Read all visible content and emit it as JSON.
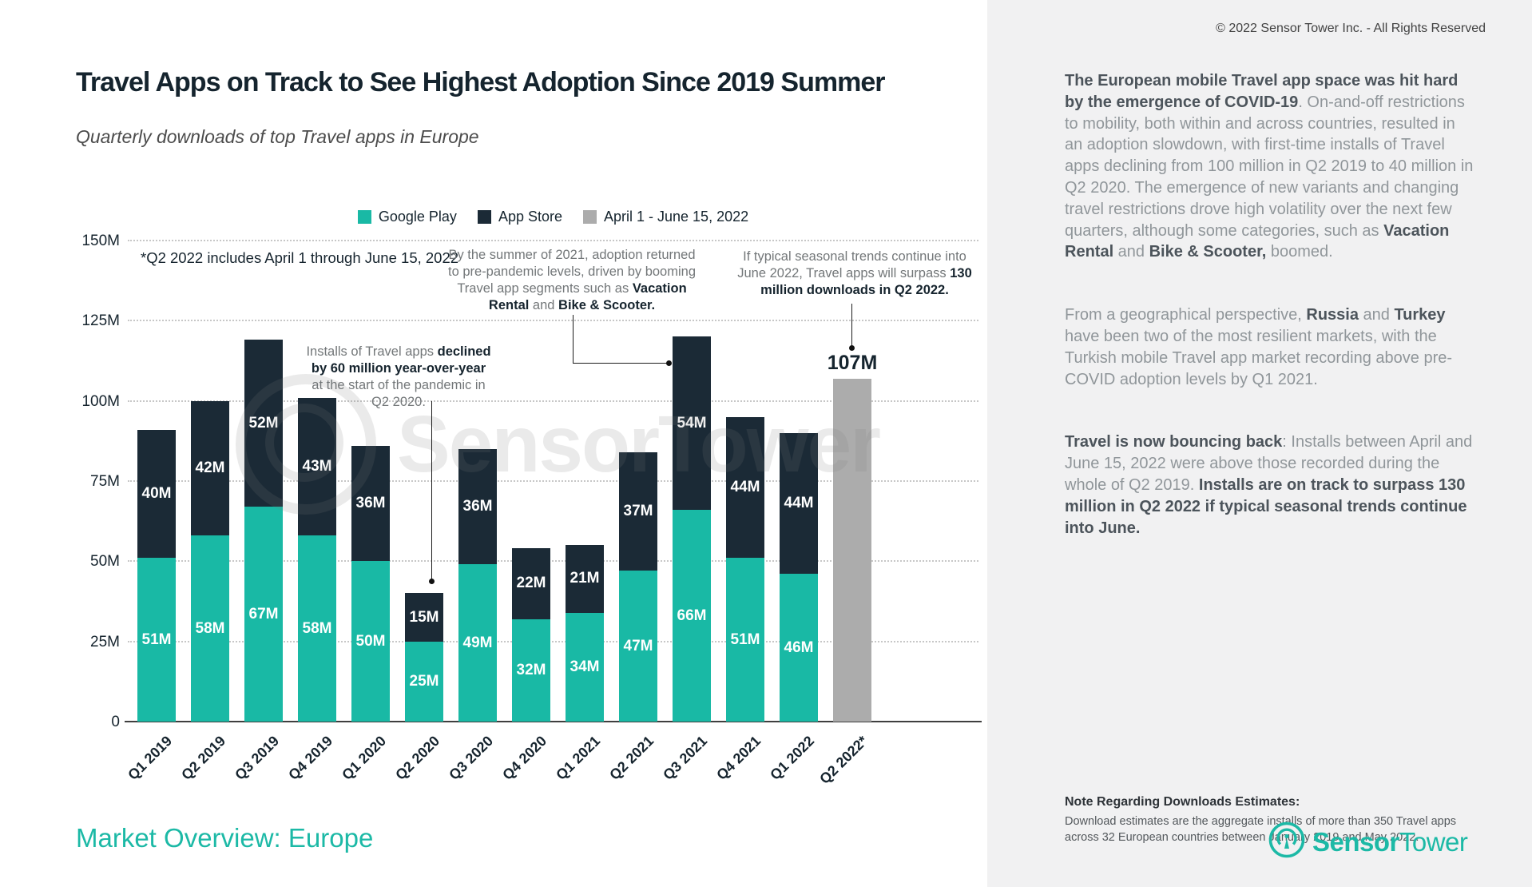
{
  "left_panel": {
    "title": "Travel Apps on Track to See Highest Adoption Since 2019 Summer",
    "subtitle": "Quarterly downloads of top Travel apps in Europe",
    "footer": "Market Overview: Europe",
    "watermark": "SensorTower"
  },
  "chart_data": {
    "type": "bar",
    "stacked": true,
    "title": "Quarterly downloads of top Travel apps in Europe",
    "unit": "M",
    "ylim": [
      0,
      150
    ],
    "yticks": [
      "150M",
      "125M",
      "100M",
      "75M",
      "50M",
      "25M",
      "0"
    ],
    "grid": "horizontal-dotted",
    "legend_position": "top-center",
    "categories": [
      "Q1 2019",
      "Q2 2019",
      "Q3 2019",
      "Q4 2019",
      "Q1 2020",
      "Q2 2020",
      "Q3 2020",
      "Q4 2020",
      "Q1 2021",
      "Q2 2021",
      "Q3 2021",
      "Q4 2021",
      "Q1 2022",
      "Q2 2022*"
    ],
    "series": [
      {
        "name": "Google Play",
        "color": "#19b9a5",
        "values": [
          51,
          58,
          67,
          58,
          50,
          25,
          49,
          32,
          34,
          47,
          66,
          51,
          46,
          null
        ]
      },
      {
        "name": "App Store",
        "color": "#1b2a36",
        "values": [
          40,
          42,
          52,
          43,
          36,
          15,
          36,
          22,
          21,
          37,
          54,
          44,
          44,
          null
        ]
      },
      {
        "name": "April 1 - June 15, 2022",
        "color": "#acacac",
        "values": [
          null,
          null,
          null,
          null,
          null,
          null,
          null,
          null,
          null,
          null,
          null,
          null,
          null,
          107
        ]
      }
    ],
    "estimate_total_label": "107M"
  },
  "annotations": {
    "footnote": {
      "runs": [
        {
          "t": "*Q2 2022 includes April 1 through June 15, 2022"
        }
      ]
    },
    "summer_2021": {
      "runs": [
        {
          "t": "By the summer of 2021, adoption returned to pre-pandemic levels, driven by booming Travel app segments such as "
        },
        {
          "b": 1,
          "t": "Vacation Rental"
        },
        {
          "t": " and "
        },
        {
          "b": 1,
          "t": "Bike & Scooter."
        }
      ]
    },
    "forecast": {
      "runs": [
        {
          "t": "If typical seasonal trends continue into June 2022, Travel apps will surpass "
        },
        {
          "b": 1,
          "t": "130 million downloads in Q2 2022."
        }
      ]
    },
    "pandemic_drop": {
      "runs": [
        {
          "t": "Installs of Travel apps "
        },
        {
          "b": 1,
          "t": "declined by 60 million year-over-year"
        },
        {
          "t": " at the start of the pandemic in Q2 2020."
        }
      ]
    }
  },
  "right_panel": {
    "copyright": "© 2022 Sensor Tower Inc. - All Rights Reserved",
    "p1": {
      "runs": [
        {
          "b": 1,
          "t": "The European mobile Travel app space was hit hard by the emergence of COVID-19"
        },
        {
          "t": ". On-and-off restrictions to mobility, both within and across countries, resulted in an adoption slowdown, with first-time installs of Travel apps declining from 100 million in Q2 2019 to 40 million in Q2 2020. The emergence of new variants and changing travel restrictions drove high volatility over the next few quarters, although some categories, such as "
        },
        {
          "b": 1,
          "t": "Vacation Rental"
        },
        {
          "t": " and "
        },
        {
          "b": 1,
          "t": "Bike & Scooter,"
        },
        {
          "t": " boomed."
        }
      ]
    },
    "p2": {
      "runs": [
        {
          "t": "From a geographical perspective, "
        },
        {
          "b": 1,
          "t": "Russia"
        },
        {
          "t": " and "
        },
        {
          "b": 1,
          "t": "Turkey"
        },
        {
          "t": " have been two of the most resilient markets, with the Turkish mobile Travel app market recording above pre-COVID adoption levels by Q1 2021."
        }
      ]
    },
    "p3": {
      "runs": [
        {
          "b": 1,
          "t": "Travel is now bouncing back"
        },
        {
          "t": ": Installs between April and June 15, 2022 were above those recorded during the whole of Q2 2019. "
        },
        {
          "b": 1,
          "t": "Installs are on track to surpass 130 million in Q2 2022 if typical seasonal trends continue into June."
        }
      ]
    },
    "note_heading": "Note Regarding Downloads Estimates:",
    "note_body": "Download estimates are the aggregate installs of more than 350 Travel apps across 32 European countries between January 2019 and May 2022.",
    "logo_bold": "Sensor",
    "logo_regular": "Tower"
  }
}
